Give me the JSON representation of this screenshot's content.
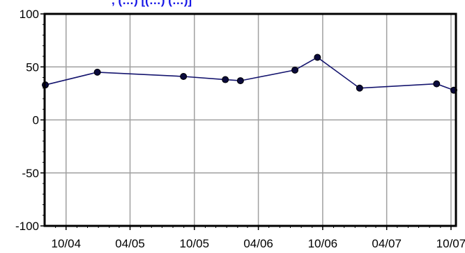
{
  "chart_data": {
    "type": "line",
    "title_visible_fragment": ", (…) [(…) (…)]",
    "xlabel": "",
    "ylabel": "",
    "x_tick_labels": [
      "10/04",
      "04/05",
      "10/05",
      "04/06",
      "10/06",
      "04/07",
      "10/07"
    ],
    "x_ticks": [
      "2004-10-01",
      "2005-04-01",
      "2005-10-01",
      "2006-04-01",
      "2006-10-01",
      "2007-04-01",
      "2007-10-01"
    ],
    "xlim": [
      "2004-08-01",
      "2007-10-15"
    ],
    "ylim": [
      -100,
      100
    ],
    "y_ticks": [
      100,
      50,
      0,
      -50,
      -100
    ],
    "grid": true,
    "series": [
      {
        "color": "#14146e",
        "marker_color": "#0a0a3c",
        "points": [
          {
            "x": "2004-08-03",
            "y": 33
          },
          {
            "x": "2004-12-29",
            "y": 45
          },
          {
            "x": "2005-08-31",
            "y": 41
          },
          {
            "x": "2005-12-28",
            "y": 38
          },
          {
            "x": "2006-02-09",
            "y": 37
          },
          {
            "x": "2006-07-14",
            "y": 47
          },
          {
            "x": "2006-09-16",
            "y": 59
          },
          {
            "x": "2007-01-14",
            "y": 30
          },
          {
            "x": "2007-08-21",
            "y": 34
          },
          {
            "x": "2007-10-09",
            "y": 28
          }
        ]
      }
    ]
  }
}
